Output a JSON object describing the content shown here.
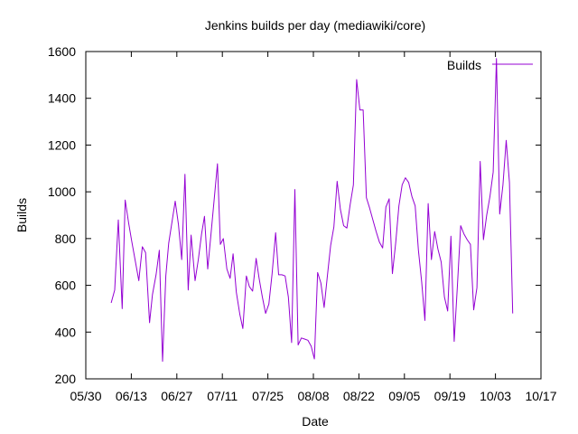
{
  "chart_data": {
    "type": "line",
    "title": "Jenkins builds per day (mediawiki/core)",
    "xlabel": "Date",
    "ylabel": "Builds",
    "x_ticks": [
      "05/30",
      "06/13",
      "06/27",
      "07/11",
      "07/25",
      "08/08",
      "08/22",
      "09/05",
      "09/19",
      "10/03",
      "10/17"
    ],
    "y_ticks": [
      "200",
      "400",
      "600",
      "800",
      "1000",
      "1200",
      "1400",
      "1600"
    ],
    "ylim": [
      200,
      1600
    ],
    "legend": {
      "position": "top-right",
      "label": "Builds"
    },
    "series": [
      {
        "name": "Builds",
        "color": "#9400d3",
        "x_days_from_0530": [
          7.8,
          8.9,
          10.0,
          11.2,
          12.1,
          13.2,
          14.1,
          16.3,
          17.4,
          18.4,
          19.6,
          20.5,
          21.6,
          22.6,
          23.6,
          24.6,
          25.5,
          27.5,
          28.5,
          29.5,
          30.5,
          31.5,
          32.4,
          33.6,
          34.6,
          35.6,
          36.5,
          37.5,
          38.6,
          40.5,
          41.4,
          42.3,
          43.4,
          44.4,
          45.3,
          46.3,
          47.4,
          48.3,
          49.4,
          50.3,
          51.3,
          52.4,
          53.3,
          54.3,
          55.3,
          56.3,
          57.3,
          58.4,
          59.3,
          60.3,
          61.3,
          62.3,
          63.3,
          64.3,
          65.3,
          66.3,
          67.3,
          68.3,
          69.3,
          70.3,
          71.3,
          72.3,
          73.3,
          74.3,
          75.3,
          76.3,
          77.3,
          78.3,
          79.3,
          80.3,
          81.3,
          82.3,
          83.3,
          84.3,
          85.3,
          86.3,
          87.3,
          88.3,
          89.3,
          90.3,
          91.3,
          92.3,
          93.3,
          94.3,
          95.3,
          96.3,
          97.3,
          98.3,
          99.3,
          100.3,
          101.3,
          102.3,
          103.3,
          104.3,
          105.3,
          106.3,
          107.3,
          108.3,
          109.3,
          110.3,
          111.3,
          112.3,
          113.3,
          114.3,
          115.3,
          116.3,
          117.3,
          118.3,
          119.3,
          120.3,
          121.3,
          122.3,
          123.3,
          124.3,
          125.3,
          126.3,
          127.3,
          128.3,
          129.3,
          130.3,
          131.3
        ],
        "values": [
          525,
          580,
          880,
          500,
          965,
          865,
          790,
          620,
          765,
          740,
          440,
          560,
          645,
          750,
          275,
          640,
          780,
          960,
          860,
          710,
          1075,
          580,
          815,
          620,
          710,
          820,
          895,
          670,
          835,
          1120,
          775,
          800,
          670,
          630,
          735,
          570,
          475,
          415,
          640,
          595,
          575,
          715,
          630,
          550,
          480,
          520,
          650,
          825,
          645,
          645,
          640,
          550,
          355,
          1010,
          345,
          375,
          370,
          365,
          340,
          285,
          655,
          610,
          505,
          640,
          770,
          850,
          1045,
          925,
          855,
          845,
          945,
          1030,
          1480,
          1350,
          1350,
          975,
          930,
          880,
          830,
          785,
          760,
          935,
          970,
          650,
          780,
          940,
          1030,
          1060,
          1040,
          980,
          940,
          750,
          615,
          450,
          950,
          710,
          830,
          755,
          700,
          550,
          490,
          810,
          360,
          600,
          855,
          820,
          795,
          775,
          495,
          590,
          1130,
          795,
          900,
          980,
          1085,
          1570,
          905,
          1030,
          1220,
          1040,
          480
        ]
      }
    ]
  }
}
